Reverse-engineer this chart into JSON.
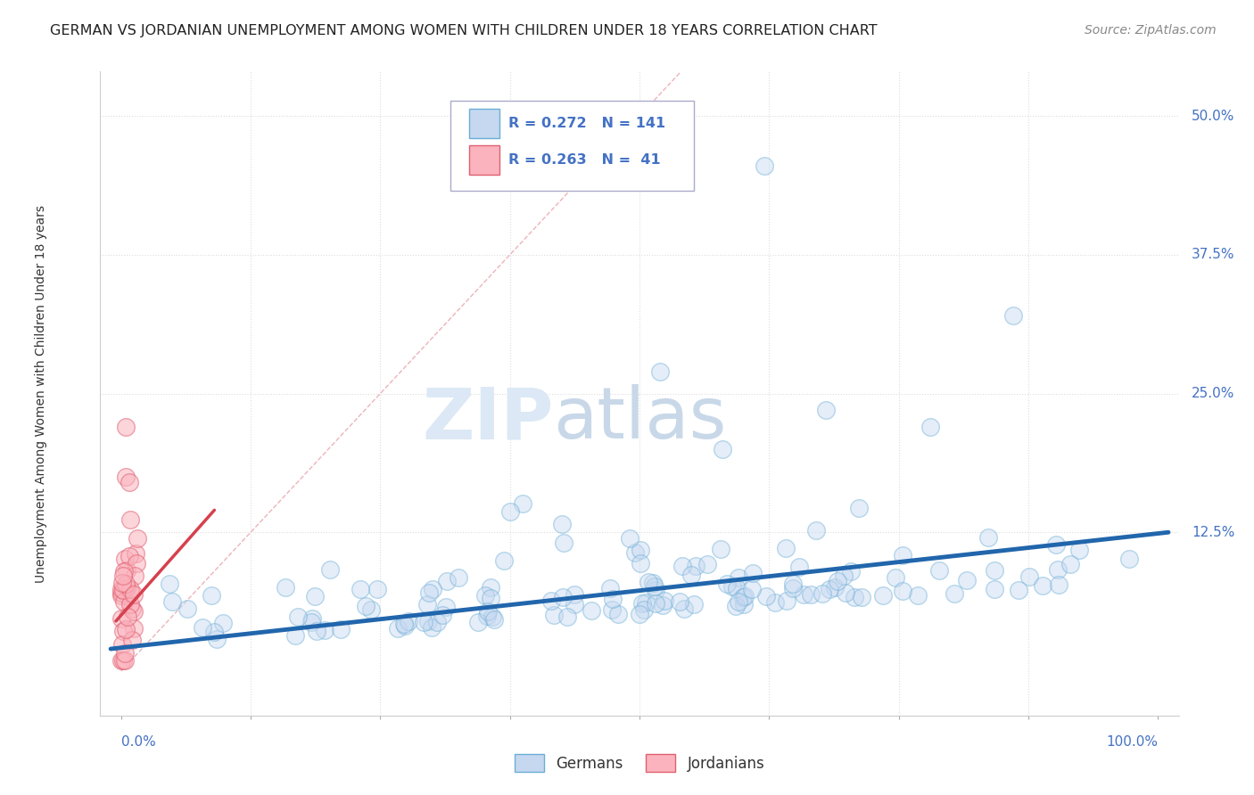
{
  "title": "GERMAN VS JORDANIAN UNEMPLOYMENT AMONG WOMEN WITH CHILDREN UNDER 18 YEARS CORRELATION CHART",
  "source": "Source: ZipAtlas.com",
  "ylabel": "Unemployment Among Women with Children Under 18 years",
  "german_color": "#c5d8f0",
  "german_edge_color": "#6baed6",
  "jordanian_color": "#fbb4be",
  "jordanian_edge_color": "#e06070",
  "regression_blue": "#2166ac",
  "regression_pink": "#d6404e",
  "diag_color": "#e8a0a8",
  "title_fontsize": 11.5,
  "source_fontsize": 10,
  "legend_r_german": "R = 0.272",
  "legend_n_german": "N = 141",
  "legend_r_jordan": "R = 0.263",
  "legend_n_jordan": "N =  41",
  "watermark_zip": "ZIP",
  "watermark_atlas": "atlas",
  "xlim": [
    -0.02,
    1.02
  ],
  "ylim": [
    -0.04,
    0.54
  ],
  "german_seed": 42,
  "jordanian_seed": 7,
  "german_n": 141,
  "jordanian_n": 41
}
